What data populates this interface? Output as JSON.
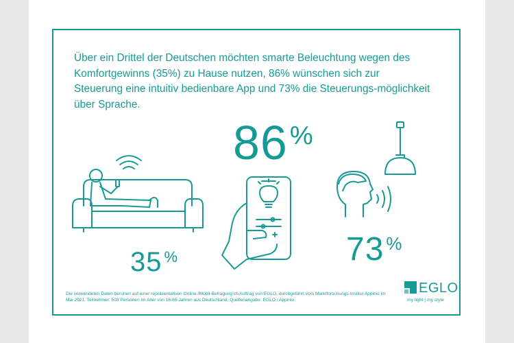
{
  "headline": "Über ein Drittel der Deutschen möchten smarte Beleuchtung wegen des Komfortgewinns (35%) zu Hause nutzen, 86% wünschen sich zur Steuerung eine intuitiv bedienbare App und 73% die Steuerungs-möglichkeit über Sprache.",
  "stats": {
    "comfort": {
      "value": "35",
      "unit": "%"
    },
    "app": {
      "value": "86",
      "unit": "%"
    },
    "voice": {
      "value": "73",
      "unit": "%"
    }
  },
  "footnote": "Die verwendeten Daten beruhen auf einer repräsentativen Online-/Mobil-Befragung im Auftrag von EGLO, durchgeführt vom Marktforschungs-Institut Appinio im Mai 2021. Teilnehmer: 503 Personen im Alter von 16-65 Jahren aus Deutschland. Quellenangabe: EGLO / Appinio",
  "logo": {
    "name": "EGLO",
    "tagline": "my light | my style"
  },
  "colors": {
    "accent": "#179a96",
    "background": "#ffffff",
    "page": "#e8e8e8"
  },
  "icons": [
    "person-on-sofa-icon",
    "wireless-signal-icon",
    "smartphone-app-icon",
    "lightbulb-icon",
    "head-speaking-icon",
    "sound-waves-icon",
    "pendant-lamp-icon"
  ]
}
